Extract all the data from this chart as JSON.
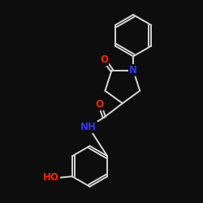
{
  "background_color": "#0d0d0d",
  "bond_color": "#d8d8d8",
  "atom_colors": {
    "N": "#3333ff",
    "O": "#ff2200"
  },
  "lw": 1.4,
  "font_size": 8.5
}
